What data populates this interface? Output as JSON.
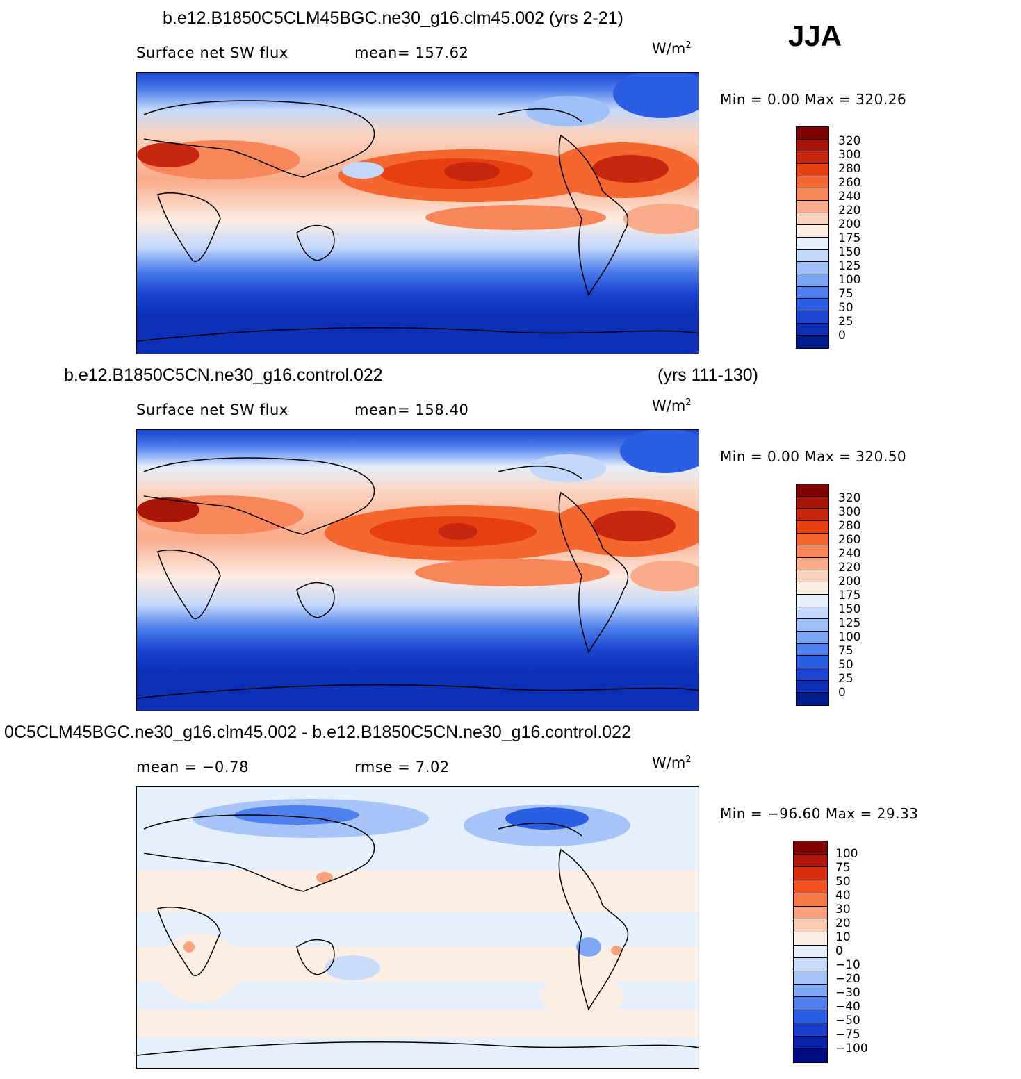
{
  "season": "JJA",
  "panels": [
    {
      "id": "test",
      "case_label": "b.e12.B1850C5CLM45BGC.ne30_g16.clm45.002 (yrs 2-21)",
      "years_label": "",
      "variable": "Surface net SW flux",
      "stat1": "mean=  157.62",
      "stat2": "",
      "units": "W/m",
      "units_exp": "2",
      "minmax": "Min  =     0.00  Max  =  320.26",
      "colorbar": {
        "levels": [
          "320",
          "300",
          "280",
          "260",
          "240",
          "220",
          "200",
          "175",
          "150",
          "125",
          "100",
          "75",
          "50",
          "25",
          "0"
        ],
        "colors": [
          "#7f0000",
          "#a8160a",
          "#c8270f",
          "#e6400e",
          "#f4672f",
          "#f8865a",
          "#f9ab8a",
          "#fbd4bf",
          "#fdece2",
          "#e4eefc",
          "#c3d8fb",
          "#9fc1f8",
          "#7aa5f3",
          "#4f80ec",
          "#2c5ee3",
          "#1a44d1",
          "#0c2fb5",
          "#001b8c"
        ]
      }
    },
    {
      "id": "control",
      "case_label": "b.e12.B1850C5CN.ne30_g16.control.022",
      "years_label": "(yrs 111-130)",
      "variable": "Surface net SW flux",
      "stat1": "mean=  158.40",
      "stat2": "",
      "units": "W/m",
      "units_exp": "2",
      "minmax": "Min  =     0.00  Max  =  320.50",
      "colorbar": {
        "levels": [
          "320",
          "300",
          "280",
          "260",
          "240",
          "220",
          "200",
          "175",
          "150",
          "125",
          "100",
          "75",
          "50",
          "25",
          "0"
        ],
        "colors": [
          "#7f0000",
          "#a8160a",
          "#c8270f",
          "#e6400e",
          "#f4672f",
          "#f8865a",
          "#f9ab8a",
          "#fbd4bf",
          "#fdece2",
          "#e4eefc",
          "#c3d8fb",
          "#9fc1f8",
          "#7aa5f3",
          "#4f80ec",
          "#2c5ee3",
          "#1a44d1",
          "#0c2fb5",
          "#001b8c"
        ]
      }
    },
    {
      "id": "diff",
      "case_label": "0C5CLM45BGC.ne30_g16.clm45.002 - b.e12.B1850C5CN.ne30_g16.control.022",
      "years_label": "",
      "variable": "mean =    −0.78",
      "stat1": "rmse =     7.02",
      "stat2": "",
      "units": "W/m",
      "units_exp": "2",
      "minmax": "Min  = −96.60  Max  =    29.33",
      "colorbar": {
        "levels": [
          "100",
          "75",
          "50",
          "40",
          "30",
          "20",
          "10",
          "0",
          "−10",
          "−20",
          "−30",
          "−40",
          "−50",
          "−75",
          "−100"
        ],
        "colors": [
          "#7f0000",
          "#b3180c",
          "#d8300f",
          "#f2501c",
          "#f67a45",
          "#f8a27d",
          "#fbcdb4",
          "#fdeee4",
          "#e6f0fd",
          "#c9dcfb",
          "#a6c4f8",
          "#7ea8f3",
          "#4f80ec",
          "#2c5ee3",
          "#1a3dd0",
          "#0a22a8",
          "#000a80"
        ]
      }
    }
  ]
}
